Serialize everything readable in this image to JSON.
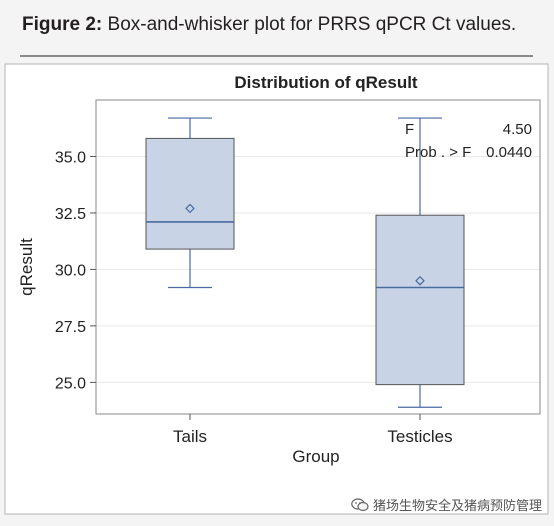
{
  "caption": {
    "label": "Figure 2:",
    "text": "Box-and-whisker plot for PRRS qPCR Ct values."
  },
  "watermark": {
    "text": "猪场生物安全及猪病预防管理",
    "icon": "wechat-icon"
  },
  "colors": {
    "box_fill": "#c8d4e6",
    "box_stroke": "#4a6aa0",
    "frame": "#8a8a8a",
    "grid": "#e8e8e8"
  },
  "chart_data": {
    "type": "box",
    "title": "Distribution of qResult",
    "xlabel": "Group",
    "ylabel": "qResult",
    "ylim": [
      23.6,
      37.5
    ],
    "yticks": [
      25.0,
      27.5,
      30.0,
      32.5,
      35.0
    ],
    "ytick_labels": [
      "25.0",
      "27.5",
      "30.0",
      "32.5",
      "35.0"
    ],
    "grid": true,
    "categories": [
      "Tails",
      "Testicles"
    ],
    "boxes": [
      {
        "category": "Tails",
        "min": 29.2,
        "q1": 30.9,
        "median": 32.1,
        "q3": 35.8,
        "max": 36.7,
        "mean": 32.7
      },
      {
        "category": "Testicles",
        "min": 23.9,
        "q1": 24.9,
        "median": 29.2,
        "q3": 32.4,
        "max": 36.7,
        "mean": 29.5
      }
    ],
    "stats_box": {
      "position": "top-right",
      "rows": [
        {
          "label": "F",
          "value": "4.50"
        },
        {
          "label": "Prob . > F",
          "value": "0.0440"
        }
      ]
    }
  }
}
